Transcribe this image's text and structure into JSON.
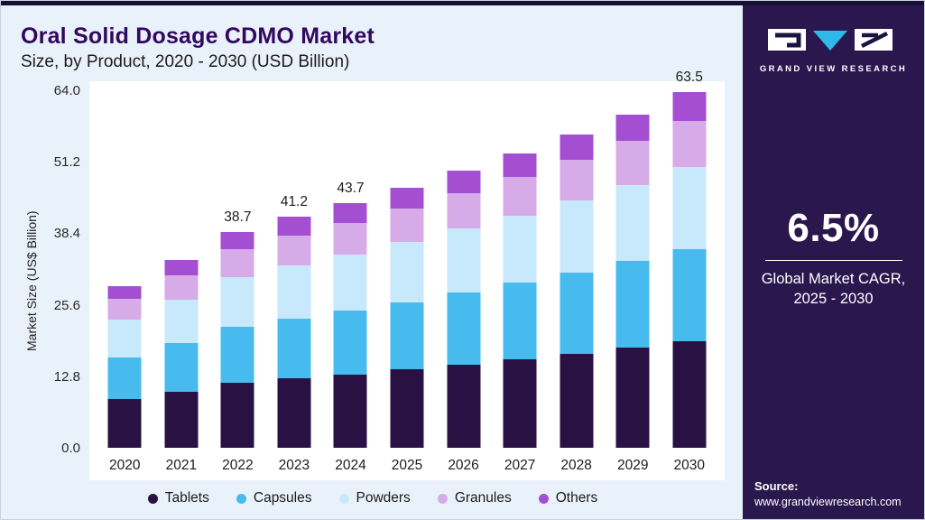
{
  "header": {
    "title": "Oral Solid Dosage CDMO Market",
    "subtitle": "Size, by Product, 2020 - 2030 (USD Billion)"
  },
  "chart_data": {
    "type": "bar",
    "stacked": true,
    "title": "Oral Solid Dosage CDMO Market Size, by Product, 2020 - 2030 (USD Billion)",
    "xlabel": "",
    "ylabel": "Market Size (US$ Billion)",
    "ylim": [
      0,
      64
    ],
    "yticks": [
      0,
      12.8,
      25.6,
      38.4,
      51.2,
      64
    ],
    "grid": false,
    "legend_position": "bottom",
    "categories": [
      "2020",
      "2021",
      "2022",
      "2023",
      "2024",
      "2025",
      "2026",
      "2027",
      "2028",
      "2029",
      "2030"
    ],
    "series": [
      {
        "name": "Tablets",
        "color": "#2a1144",
        "values": [
          8.7,
          10.1,
          11.6,
          12.4,
          13.1,
          14.0,
          14.9,
          15.8,
          16.8,
          17.9,
          19.1
        ]
      },
      {
        "name": "Capsules",
        "color": "#47bbed",
        "values": [
          7.5,
          8.7,
          10.1,
          10.7,
          11.4,
          12.1,
          12.9,
          13.7,
          14.6,
          15.5,
          16.5
        ]
      },
      {
        "name": "Powders",
        "color": "#c8e9fb",
        "values": [
          6.7,
          7.7,
          8.9,
          9.5,
          10.1,
          10.7,
          11.4,
          12.1,
          12.9,
          13.7,
          14.6
        ]
      },
      {
        "name": "Granules",
        "color": "#d7abe8",
        "values": [
          3.8,
          4.4,
          5.0,
          5.4,
          5.7,
          6.0,
          6.4,
          6.9,
          7.3,
          7.8,
          8.3
        ]
      },
      {
        "name": "Others",
        "color": "#a44fd1",
        "values": [
          2.3,
          2.7,
          3.1,
          3.3,
          3.5,
          3.7,
          4.0,
          4.2,
          4.5,
          4.8,
          5.1
        ]
      }
    ],
    "bar_labels": [
      "",
      "",
      "38.7",
      "41.2",
      "43.7",
      "",
      "",
      "",
      "",
      "",
      "63.5"
    ]
  },
  "sidebar": {
    "brand": "GRAND VIEW RESEARCH",
    "cagr_value": "6.5%",
    "cagr_caption_line1": "Global Market CAGR,",
    "cagr_caption_line2": "2025 - 2030",
    "source_label": "Source:",
    "source_url": "www.grandviewresearch.com"
  },
  "theme": {
    "background": "#e9f2fa",
    "plot_background": "#ffffff",
    "panel": "#2a174e",
    "topbar": "#171036",
    "title_color": "#31085e",
    "logo_accent": "#2fb9e9"
  }
}
